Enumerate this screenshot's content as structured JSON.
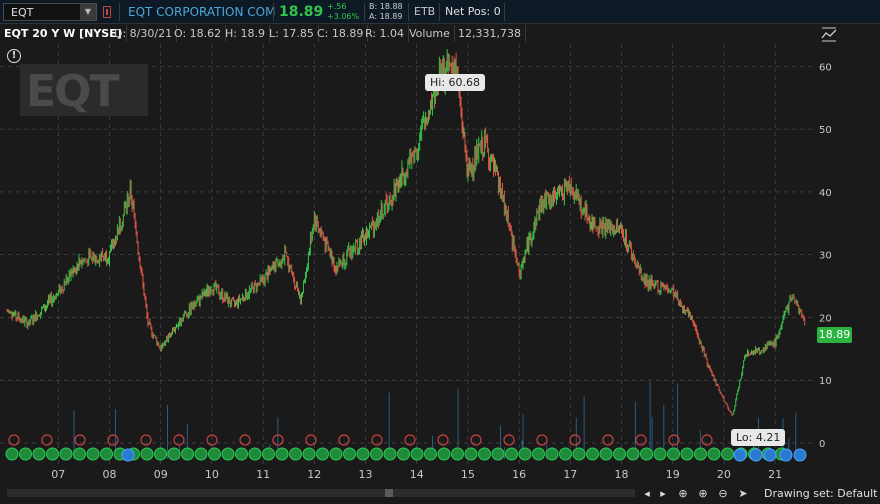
{
  "quote_bar": {
    "symbol": "EQT",
    "company": "EQT CORPORATION COM",
    "last": "18.89",
    "change": "+.56",
    "change_pct": "+3.06%",
    "bid": "B: 18.88",
    "ask": "A: 18.89",
    "etb": "ETB",
    "net_pos": "Net Pos: 0"
  },
  "chart_header": {
    "title": "EQT 20 Y W [NYSE]",
    "date": "D: 8/30/21",
    "open": "O: 18.62",
    "high": "H: 18.9",
    "low": "L: 17.85",
    "close": "C: 18.89",
    "range": "R: 1.04",
    "volume_label": "Volume",
    "volume": "12,331,738"
  },
  "logo_text": "EQT",
  "callouts": {
    "hi": "Hi: 60.68",
    "lo": "Lo: 4.21"
  },
  "price_tag": "18.89",
  "chart_data": {
    "type": "line",
    "title": "",
    "ylabel": "",
    "ylim": [
      0,
      64
    ],
    "yticks": [
      0,
      10,
      20,
      30,
      40,
      50,
      60
    ],
    "x_tick_labels": [
      "07",
      "08",
      "09",
      "10",
      "11",
      "12",
      "13",
      "14",
      "15",
      "16",
      "17",
      "18",
      "19",
      "20",
      "21"
    ],
    "series": [
      {
        "x": [
          "2006-01",
          "2006-06",
          "2007-01",
          "2007-06",
          "2008-01",
          "2008-06",
          "2008-10",
          "2009-01",
          "2009-06",
          "2010-01",
          "2010-06",
          "2011-01",
          "2011-06",
          "2011-10",
          "2012-01",
          "2012-06",
          "2013-01",
          "2013-06",
          "2014-01",
          "2014-06",
          "2014-10",
          "2015-01",
          "2015-05",
          "2015-10",
          "2016-01",
          "2016-06",
          "2017-01",
          "2017-06",
          "2018-01",
          "2018-06",
          "2019-01",
          "2019-06",
          "2019-10",
          "2020-03",
          "2020-06",
          "2021-01",
          "2021-05",
          "2021-08"
        ],
        "y": [
          21,
          19,
          24,
          29,
          30,
          40,
          19,
          15,
          20,
          25,
          22,
          26,
          30,
          23,
          36,
          28,
          33,
          38,
          47,
          58,
          60.68,
          43,
          48,
          37,
          27,
          38,
          41,
          35,
          34,
          26,
          24,
          19,
          11,
          4.21,
          14,
          16,
          23.5,
          18.89
        ]
      }
    ],
    "legend": "none",
    "grid": true
  },
  "status": {
    "drawing_set": "Drawing set: Default"
  },
  "colors": {
    "up": "#35c44a",
    "down": "#e0584a",
    "background": "#1a1a1a",
    "grid": "#4a4a4a"
  }
}
